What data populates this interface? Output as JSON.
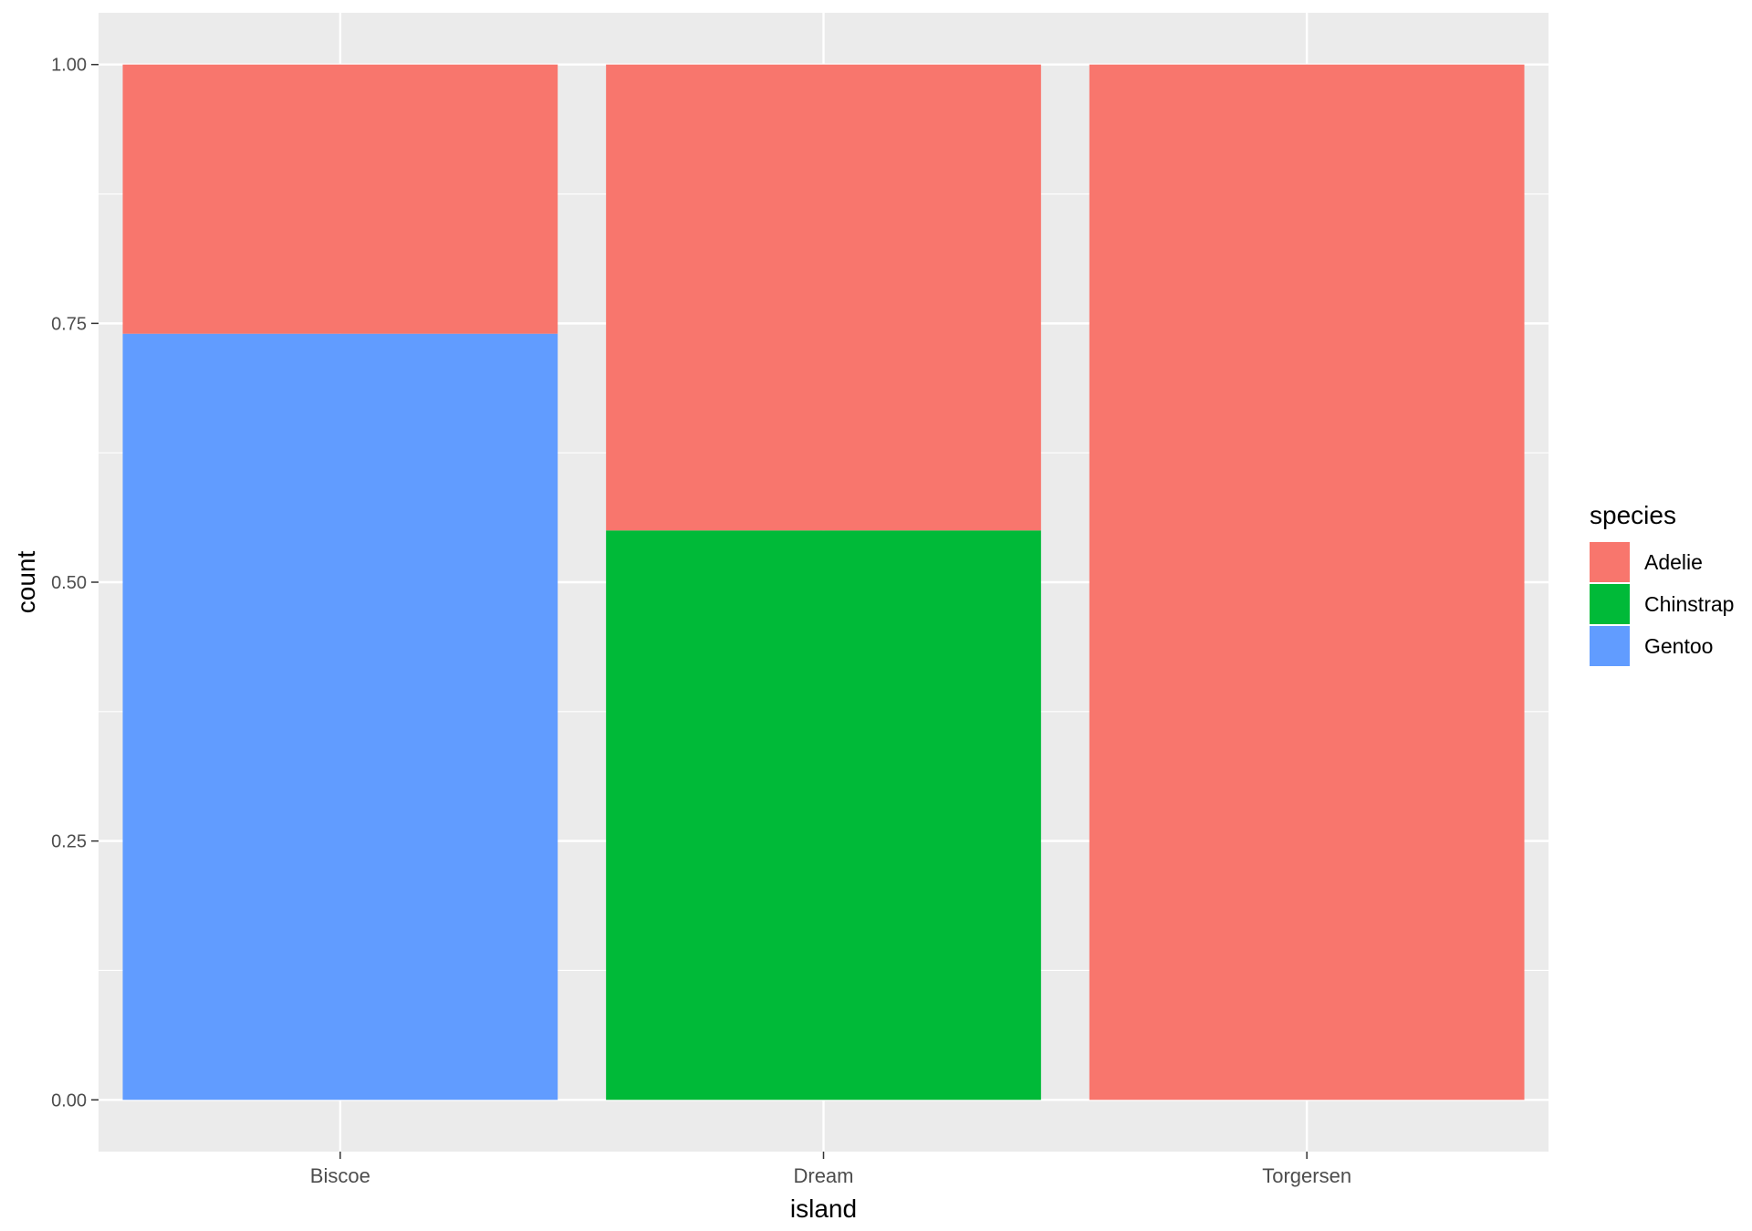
{
  "chart_data": {
    "type": "bar",
    "stacked": true,
    "position": "fill",
    "categories": [
      "Biscoe",
      "Dream",
      "Torgersen"
    ],
    "series": [
      {
        "name": "Adelie",
        "color": "#F8766D",
        "values": [
          0.26,
          0.45,
          1.0
        ]
      },
      {
        "name": "Chinstrap",
        "color": "#00BA38",
        "values": [
          0.0,
          0.55,
          0.0
        ]
      },
      {
        "name": "Gentoo",
        "color": "#619CFF",
        "values": [
          0.74,
          0.0,
          0.0
        ]
      }
    ],
    "stack_order_bottom_to_top": [
      "Gentoo",
      "Chinstrap",
      "Adelie"
    ],
    "xlabel": "island",
    "ylabel": "count",
    "ylim": [
      -0.05,
      1.05
    ],
    "yticks": [
      0.0,
      0.25,
      0.5,
      0.75,
      1.0
    ],
    "ytick_labels": [
      "0.00",
      "0.25",
      "0.50",
      "0.75",
      "1.00"
    ],
    "grid": true,
    "panel_background": "#EBEBEB",
    "legend": {
      "title": "species",
      "placement": "right",
      "entries": [
        "Adelie",
        "Chinstrap",
        "Gentoo"
      ]
    }
  }
}
